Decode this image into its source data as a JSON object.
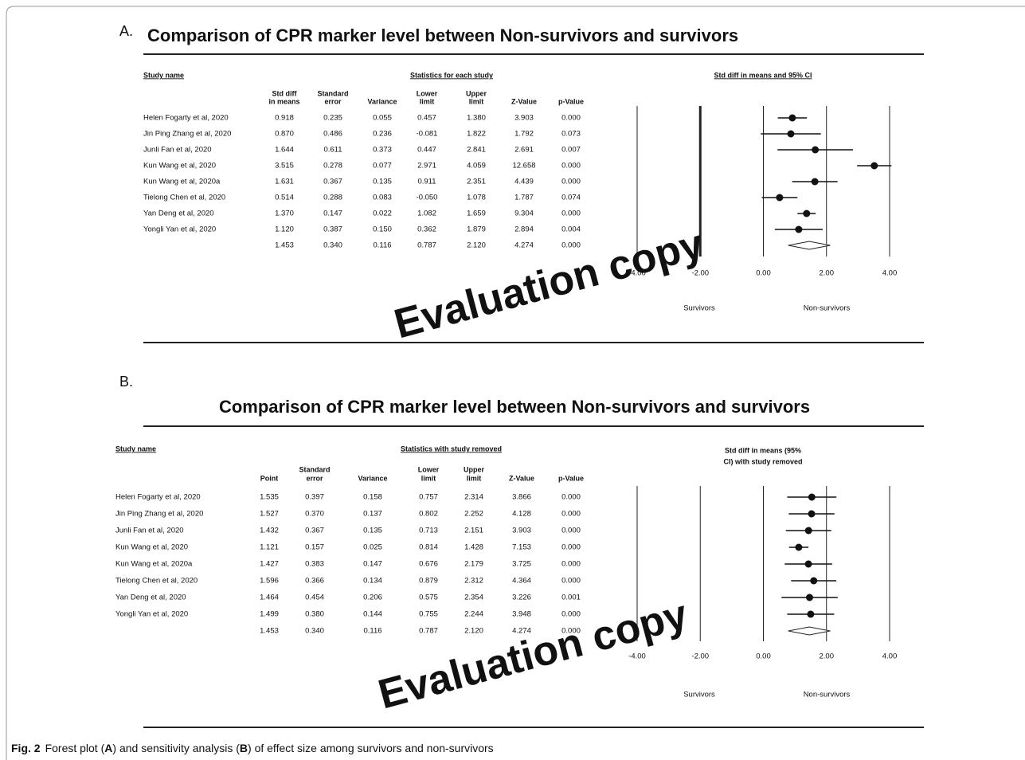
{
  "chart_data": [
    {
      "type": "forest",
      "label": "A.",
      "title": "Comparison of CPR marker level between Non-survivors and survivors",
      "study_header": "Study name",
      "group_header": "Statistics for each study",
      "plot_header": "Std diff in means and 95% CI",
      "studies": [
        "Helen Fogarty et al, 2020",
        "Jin Ping Zhang et al, 2020",
        "Junli Fan et al, 2020",
        "Kun Wang et al, 2020",
        "Kun Wang et al, 2020a",
        "Tielong Chen et al, 2020",
        "Yan Deng et al, 2020",
        "Yongli Yan et al, 2020",
        null
      ],
      "series": [
        {
          "name": [
            "Std diff",
            "in means"
          ],
          "values": [
            0.918,
            0.87,
            1.644,
            3.515,
            1.631,
            0.514,
            1.37,
            1.12,
            1.453
          ],
          "value_labels": [
            "0.918",
            "0.870",
            "1.644",
            "3.515",
            "1.631",
            "0.514",
            "1.370",
            "1.120",
            "1.453"
          ]
        },
        {
          "name": [
            "Standard",
            "error"
          ],
          "values": [
            0.235,
            0.486,
            0.611,
            0.278,
            0.367,
            0.288,
            0.147,
            0.387,
            0.34
          ],
          "value_labels": [
            "0.235",
            "0.486",
            "0.611",
            "0.278",
            "0.367",
            "0.288",
            "0.147",
            "0.387",
            "0.340"
          ]
        },
        {
          "name": [
            "Variance"
          ],
          "values": [
            0.055,
            0.236,
            0.373,
            0.077,
            0.135,
            0.083,
            0.022,
            0.15,
            0.116
          ],
          "value_labels": [
            "0.055",
            "0.236",
            "0.373",
            "0.077",
            "0.135",
            "0.083",
            "0.022",
            "0.150",
            "0.116"
          ]
        },
        {
          "name": [
            "Lower",
            "limit"
          ],
          "values": [
            0.457,
            -0.081,
            0.447,
            2.971,
            0.911,
            -0.05,
            1.082,
            0.362,
            0.787
          ],
          "value_labels": [
            "0.457",
            "-0.081",
            "0.447",
            "2.971",
            "0.911",
            "-0.050",
            "1.082",
            "0.362",
            "0.787"
          ]
        },
        {
          "name": [
            "Upper",
            "limit"
          ],
          "values": [
            1.38,
            1.822,
            2.841,
            4.059,
            2.351,
            1.078,
            1.659,
            1.879,
            2.12
          ],
          "value_labels": [
            "1.380",
            "1.822",
            "2.841",
            "4.059",
            "2.351",
            "1.078",
            "1.659",
            "1.879",
            "2.120"
          ]
        },
        {
          "name": [
            "Z-Value"
          ],
          "values": [
            3.903,
            1.792,
            2.691,
            12.658,
            4.439,
            1.787,
            9.304,
            2.894,
            4.274
          ],
          "value_labels": [
            "3.903",
            "1.792",
            "2.691",
            "12.658",
            "4.439",
            "1.787",
            "9.304",
            "2.894",
            "4.274"
          ]
        },
        {
          "name": [
            "p-Value"
          ],
          "values": [
            0.0,
            0.073,
            0.007,
            0.0,
            0.0,
            0.074,
            0.0,
            0.004,
            0.0
          ],
          "value_labels": [
            "0.000",
            "0.073",
            "0.007",
            "0.000",
            "0.000",
            "0.074",
            "0.000",
            "0.004",
            "0.000"
          ]
        }
      ],
      "xlim": [
        -4,
        4
      ],
      "xticks": [
        {
          "value": -4,
          "label": "-4.00"
        },
        {
          "value": -2,
          "label": "-2.00"
        },
        {
          "value": 0,
          "label": "0.00"
        },
        {
          "value": 2,
          "label": "2.00"
        },
        {
          "value": 4,
          "label": "4.00"
        }
      ],
      "grid": true,
      "left_label": "Survivors",
      "right_label": "Non-survivors",
      "watermark": "Evaluation copy"
    },
    {
      "type": "forest",
      "label": "B.",
      "title": "Comparison of CPR marker level between Non-survivors and survivors",
      "study_header": "Study name",
      "group_header": "Statistics with study removed",
      "plot_header": [
        "Std diff in means (95%",
        "CI) with study removed"
      ],
      "studies": [
        "Helen Fogarty et al, 2020",
        "Jin Ping Zhang et al, 2020",
        "Junli Fan et al, 2020",
        "Kun Wang et al, 2020",
        "Kun Wang et al, 2020a",
        "Tielong Chen et al, 2020",
        "Yan Deng et al, 2020",
        "Yongli Yan et al, 2020",
        null
      ],
      "series": [
        {
          "name": [
            "Point"
          ],
          "values": [
            1.535,
            1.527,
            1.432,
            1.121,
            1.427,
            1.596,
            1.464,
            1.499,
            1.453
          ],
          "value_labels": [
            "1.535",
            "1.527",
            "1.432",
            "1.121",
            "1.427",
            "1.596",
            "1.464",
            "1.499",
            "1.453"
          ]
        },
        {
          "name": [
            "Standard",
            "error"
          ],
          "values": [
            0.397,
            0.37,
            0.367,
            0.157,
            0.383,
            0.366,
            0.454,
            0.38,
            0.34
          ],
          "value_labels": [
            "0.397",
            "0.370",
            "0.367",
            "0.157",
            "0.383",
            "0.366",
            "0.454",
            "0.380",
            "0.340"
          ]
        },
        {
          "name": [
            "Variance"
          ],
          "values": [
            0.158,
            0.137,
            0.135,
            0.025,
            0.147,
            0.134,
            0.206,
            0.144,
            0.116
          ],
          "value_labels": [
            "0.158",
            "0.137",
            "0.135",
            "0.025",
            "0.147",
            "0.134",
            "0.206",
            "0.144",
            "0.116"
          ]
        },
        {
          "name": [
            "Lower",
            "limit"
          ],
          "values": [
            0.757,
            0.802,
            0.713,
            0.814,
            0.676,
            0.879,
            0.575,
            0.755,
            0.787
          ],
          "value_labels": [
            "0.757",
            "0.802",
            "0.713",
            "0.814",
            "0.676",
            "0.879",
            "0.575",
            "0.755",
            "0.787"
          ]
        },
        {
          "name": [
            "Upper",
            "limit"
          ],
          "values": [
            2.314,
            2.252,
            2.151,
            1.428,
            2.179,
            2.312,
            2.354,
            2.244,
            2.12
          ],
          "value_labels": [
            "2.314",
            "2.252",
            "2.151",
            "1.428",
            "2.179",
            "2.312",
            "2.354",
            "2.244",
            "2.120"
          ]
        },
        {
          "name": [
            "Z-Value"
          ],
          "values": [
            3.866,
            4.128,
            3.903,
            7.153,
            3.725,
            4.364,
            3.226,
            3.948,
            4.274
          ],
          "value_labels": [
            "3.866",
            "4.128",
            "3.903",
            "7.153",
            "3.725",
            "4.364",
            "3.226",
            "3.948",
            "4.274"
          ]
        },
        {
          "name": [
            "p-Value"
          ],
          "values": [
            0.0,
            0.0,
            0.0,
            0.0,
            0.0,
            0.0,
            0.001,
            0.0,
            0.0
          ],
          "value_labels": [
            "0.000",
            "0.000",
            "0.000",
            "0.000",
            "0.000",
            "0.000",
            "0.001",
            "0.000",
            "0.000"
          ]
        }
      ],
      "xlim": [
        -4,
        4
      ],
      "xticks": [
        {
          "value": -4,
          "label": "-4.00"
        },
        {
          "value": -2,
          "label": "-2.00"
        },
        {
          "value": 0,
          "label": "0.00"
        },
        {
          "value": 2,
          "label": "2.00"
        },
        {
          "value": 4,
          "label": "4.00"
        }
      ],
      "grid": true,
      "left_label": "Survivors",
      "right_label": "Non-survivors",
      "watermark": "Evaluation copy"
    }
  ],
  "caption": {
    "label": "Fig. 2",
    "text": [
      "Forest plot (",
      "A",
      ") and sensitivity analysis (",
      "B",
      ") of effect size among survivors and non-survivors"
    ]
  }
}
